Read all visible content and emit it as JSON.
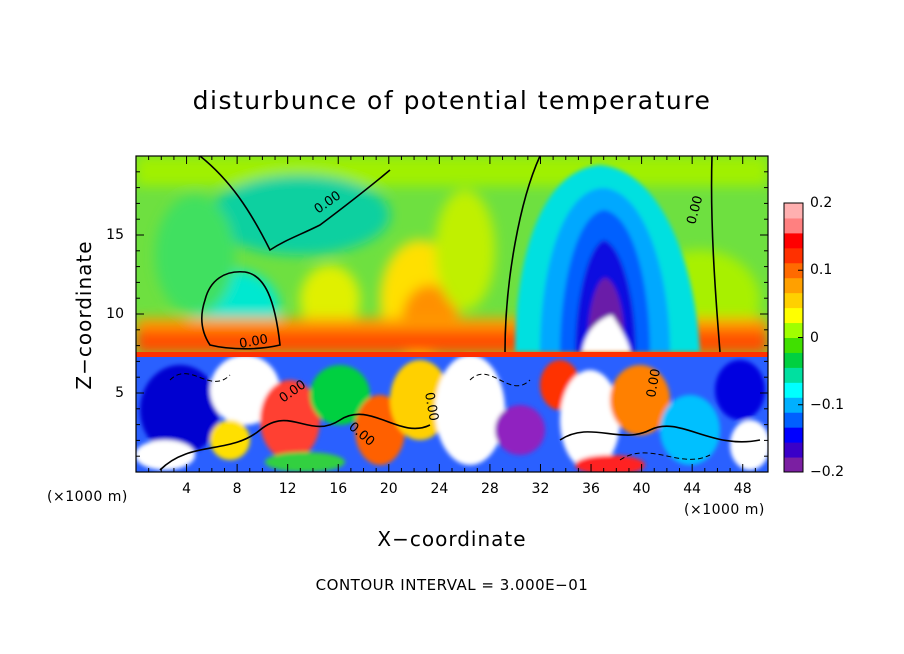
{
  "chart_data": {
    "type": "heatmap",
    "title": "disturbunce of potential temperature",
    "xlabel": "X−coordinate",
    "ylabel": "Z−coordinate",
    "x_unit_left": "(×1000 m)",
    "x_unit_right": "(×1000 m)",
    "xticks": [
      "4",
      "8",
      "12",
      "16",
      "20",
      "24",
      "28",
      "32",
      "36",
      "40",
      "44",
      "48"
    ],
    "xtick_values": [
      4,
      8,
      12,
      16,
      20,
      24,
      28,
      32,
      36,
      40,
      44,
      48
    ],
    "yticks": [
      "5",
      "10",
      "15"
    ],
    "ytick_values": [
      5,
      10,
      15
    ],
    "xlim": [
      0,
      50
    ],
    "ylim": [
      0,
      20
    ],
    "colorbar": {
      "ticks": [
        "0.2",
        "0.1",
        "0",
        "−0.1",
        "−0.2"
      ],
      "tick_values": [
        0.2,
        0.1,
        0,
        -0.1,
        -0.2
      ],
      "range": [
        -0.2,
        0.2
      ],
      "colors": [
        "#7b1fa2",
        "#3a00c8",
        "#0000ff",
        "#0060ff",
        "#00b0ff",
        "#00ffff",
        "#00e0a0",
        "#00d040",
        "#40e000",
        "#a0ff00",
        "#ffff00",
        "#ffd000",
        "#ffa000",
        "#ff6a00",
        "#ff3000",
        "#ff0000",
        "#ff8080",
        "#ffb0b0"
      ]
    },
    "contour_labels": [
      "0.00",
      "0.00",
      "0.00",
      "0.00",
      "0.00",
      "0.00",
      "0.00"
    ],
    "contour_interval": "CONTOUR INTERVAL = 3.000E−01",
    "grid": false
  }
}
